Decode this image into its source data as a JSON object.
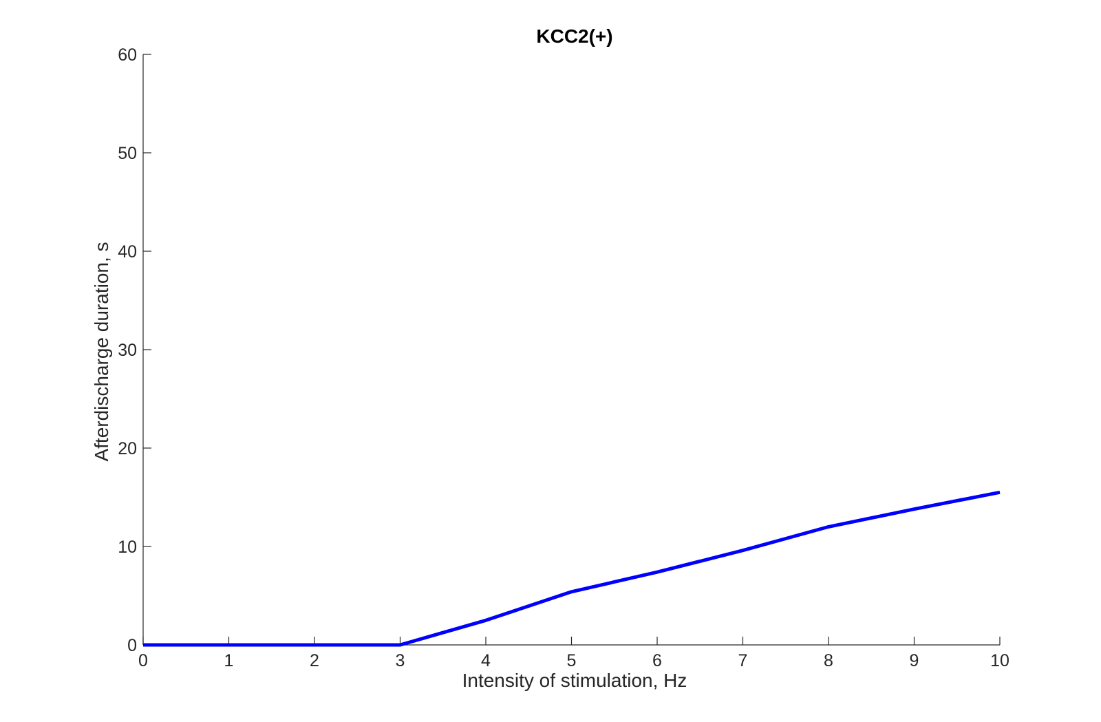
{
  "chart_data": {
    "type": "line",
    "title": "KCC2(+)",
    "xlabel": "Intensity of stimulation, Hz",
    "ylabel": "Afterdischarge duration, s",
    "xlim": [
      0,
      10
    ],
    "ylim": [
      0,
      60
    ],
    "xticks": [
      0,
      1,
      2,
      3,
      4,
      5,
      6,
      7,
      8,
      9,
      10
    ],
    "yticks": [
      0,
      10,
      20,
      30,
      40,
      50,
      60
    ],
    "grid": false,
    "legend": "none",
    "series": [
      {
        "color": "#0000ff",
        "x": [
          0,
          1,
          2,
          3,
          4,
          5,
          6,
          7,
          8,
          9,
          10
        ],
        "y": [
          0,
          0,
          0,
          0,
          2.5,
          5.4,
          7.4,
          9.6,
          12.0,
          13.8,
          15.5
        ]
      }
    ]
  }
}
